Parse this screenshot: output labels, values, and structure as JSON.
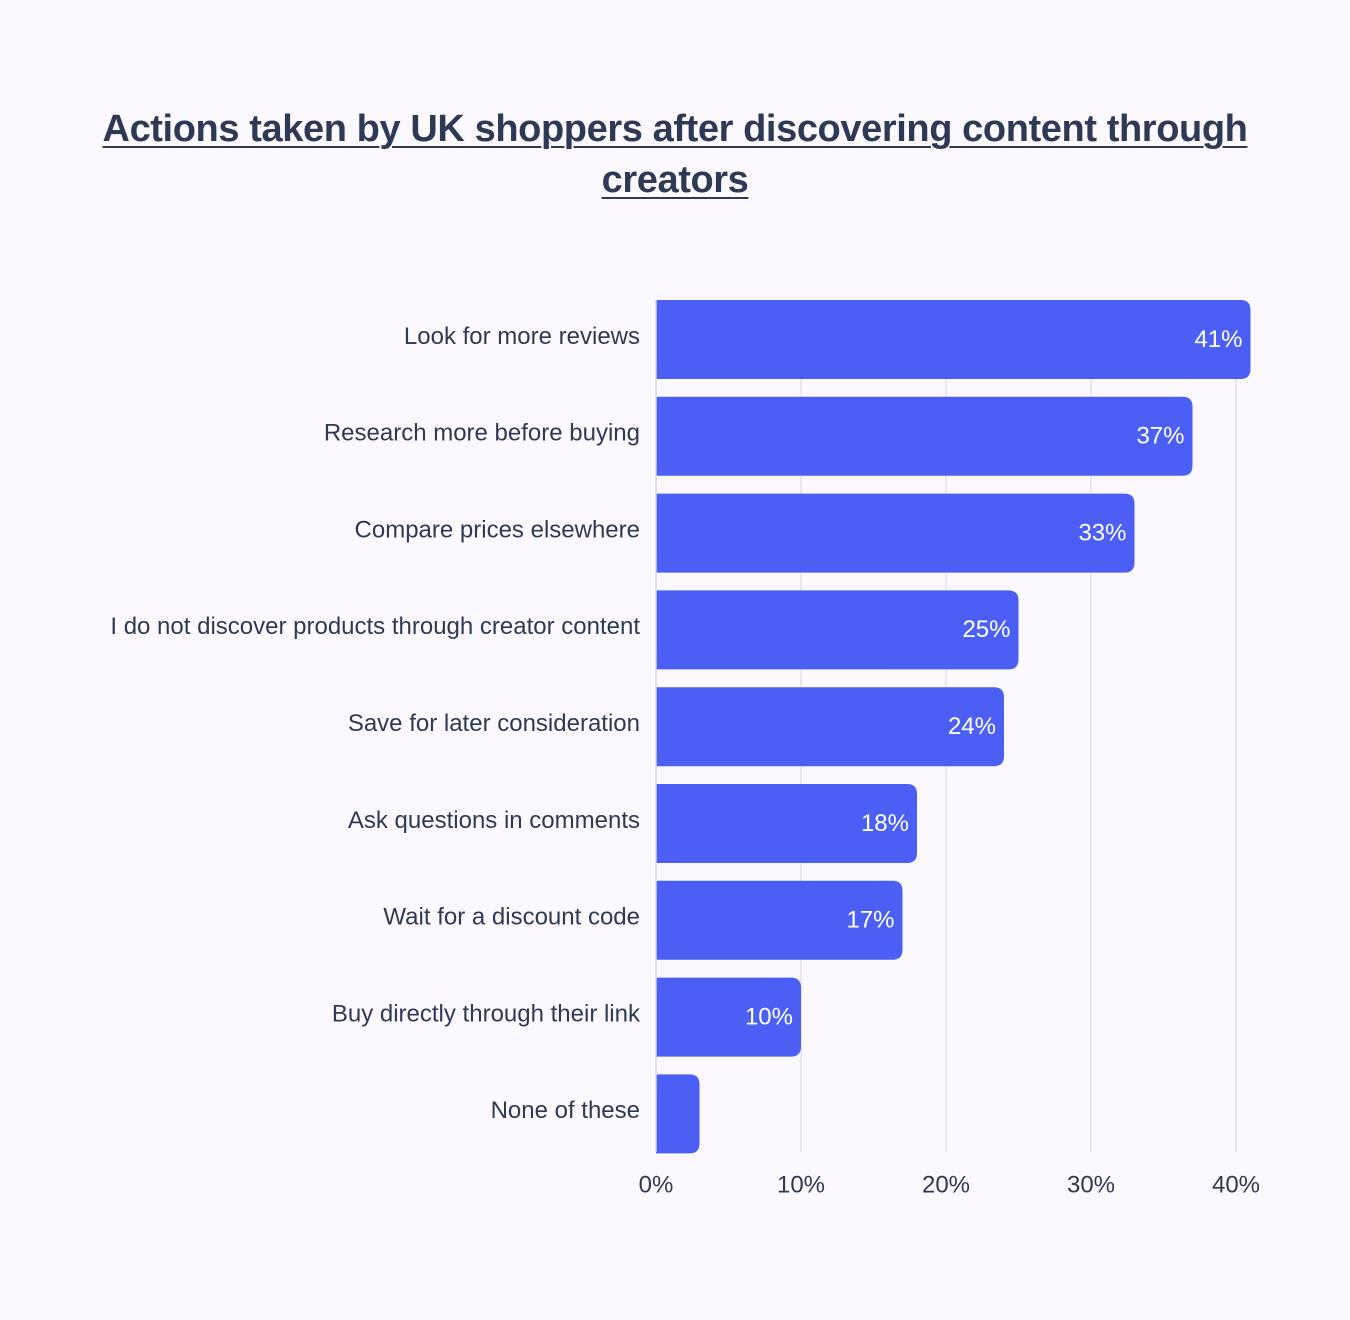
{
  "chart_data": {
    "type": "bar",
    "orientation": "horizontal",
    "title": "Actions taken by UK shoppers after discovering content through creators",
    "categories": [
      "Look for more reviews",
      "Research more before buying",
      "Compare prices elsewhere",
      "I do not discover products through creator content",
      "Save for later consideration",
      "Ask questions in comments",
      "Wait for a discount code",
      "Buy directly through their link",
      "None of these"
    ],
    "values": [
      41,
      37,
      33,
      25,
      24,
      18,
      17,
      10,
      3
    ],
    "data_labels": [
      "41%",
      "37%",
      "33%",
      "25%",
      "24%",
      "18%",
      "17%",
      "10%",
      ""
    ],
    "xlim": [
      0,
      41
    ],
    "xticks": [
      0,
      10,
      20,
      30,
      40
    ],
    "xtick_labels": [
      "0%",
      "10%",
      "20%",
      "30%",
      "40%"
    ],
    "xlabel": "",
    "ylabel": "",
    "grid": "vertical",
    "legend": "none",
    "bar_color": "#4c5ff5",
    "text_color": "#2e3a55",
    "background_color": "#fbf9fd"
  }
}
